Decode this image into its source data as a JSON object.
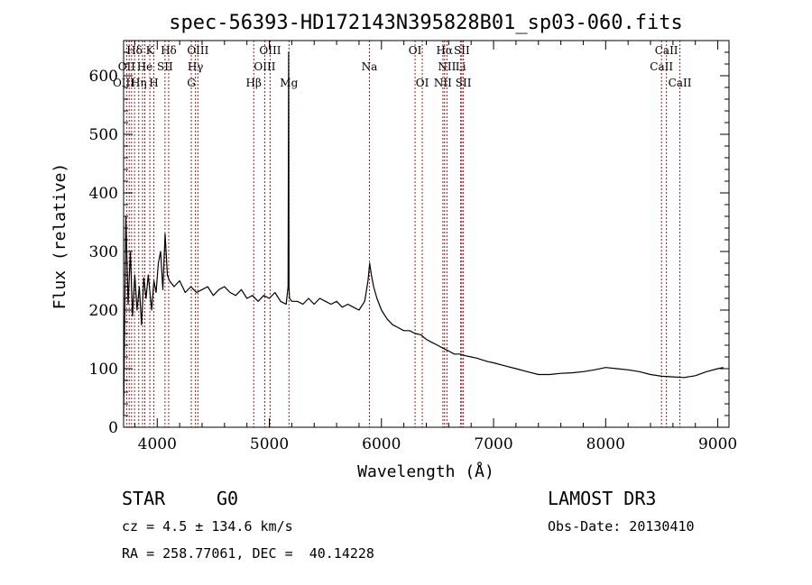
{
  "chart_data": {
    "type": "line",
    "title": "spec-56393-HD172143N395828B01_sp03-060.fits",
    "xlabel": "Wavelength (Å)",
    "ylabel": "Flux (relative)",
    "xlim": [
      3700,
      9100
    ],
    "ylim": [
      0,
      660
    ],
    "x_major_ticks": [
      4000,
      5000,
      6000,
      7000,
      8000,
      9000
    ],
    "x_tick_labels": [
      "4000",
      "5000",
      "6000",
      "7000",
      "8000",
      "9000"
    ],
    "y_major_ticks": [
      0,
      100,
      200,
      300,
      400,
      500,
      600
    ],
    "y_tick_labels": [
      "0",
      "100",
      "200",
      "300",
      "400",
      "500",
      "600"
    ],
    "series": [
      {
        "name": "spectrum",
        "color": "#000000",
        "x": [
          3700,
          3720,
          3740,
          3760,
          3780,
          3800,
          3820,
          3840,
          3860,
          3880,
          3900,
          3920,
          3950,
          3970,
          3990,
          4010,
          4030,
          4050,
          4070,
          4090,
          4110,
          4150,
          4200,
          4250,
          4300,
          4350,
          4400,
          4450,
          4500,
          4550,
          4600,
          4650,
          4700,
          4750,
          4800,
          4850,
          4900,
          4950,
          5000,
          5050,
          5100,
          5150,
          5167,
          5172,
          5175,
          5180,
          5200,
          5250,
          5300,
          5350,
          5400,
          5450,
          5500,
          5550,
          5600,
          5650,
          5700,
          5750,
          5800,
          5850,
          5880,
          5895,
          5910,
          5930,
          5960,
          6000,
          6050,
          6100,
          6150,
          6200,
          6250,
          6300,
          6350,
          6400,
          6450,
          6500,
          6550,
          6600,
          6650,
          6700,
          6750,
          6800,
          6850,
          6900,
          6950,
          7000,
          7100,
          7200,
          7300,
          7400,
          7500,
          7600,
          7700,
          7800,
          7900,
          8000,
          8100,
          8200,
          8300,
          8400,
          8500,
          8600,
          8700,
          8800,
          8900,
          9000,
          9050
        ],
        "y": [
          20,
          360,
          210,
          300,
          190,
          260,
          200,
          240,
          175,
          255,
          220,
          260,
          200,
          250,
          230,
          280,
          300,
          235,
          330,
          260,
          250,
          240,
          250,
          230,
          240,
          230,
          235,
          240,
          225,
          235,
          240,
          230,
          225,
          235,
          220,
          225,
          215,
          225,
          220,
          230,
          215,
          210,
          240,
          640,
          240,
          220,
          215,
          215,
          210,
          220,
          210,
          220,
          215,
          210,
          215,
          205,
          210,
          205,
          200,
          215,
          250,
          280,
          260,
          240,
          220,
          200,
          185,
          175,
          170,
          165,
          165,
          160,
          158,
          150,
          145,
          140,
          135,
          130,
          125,
          125,
          122,
          120,
          118,
          115,
          112,
          110,
          105,
          100,
          95,
          90,
          90,
          92,
          93,
          95,
          98,
          102,
          100,
          98,
          95,
          90,
          87,
          86,
          85,
          88,
          95,
          100,
          102
        ]
      }
    ],
    "line_labels": [
      {
        "label": "Hδ",
        "x": 3797,
        "row": 1
      },
      {
        "label": "OII",
        "x": 3727,
        "row": 2
      },
      {
        "label": "OIII",
        "x": 3700,
        "row": 3
      },
      {
        "label": "He",
        "x": 3889,
        "row": 2
      },
      {
        "label": "Hη",
        "x": 3835,
        "row": 3
      },
      {
        "label": "K",
        "x": 3934,
        "row": 1
      },
      {
        "label": "SII",
        "x": 4069,
        "row": 2
      },
      {
        "label": "H",
        "x": 3969,
        "row": 3
      },
      {
        "label": "Hδ",
        "x": 4102,
        "row": 1
      },
      {
        "label": "OIII",
        "x": 4363,
        "row": 1
      },
      {
        "label": "Hγ",
        "x": 4341,
        "row": 2
      },
      {
        "label": "G",
        "x": 4304,
        "row": 3
      },
      {
        "label": "OIII",
        "x": 5007,
        "row": 1
      },
      {
        "label": "OIII",
        "x": 4959,
        "row": 2
      },
      {
        "label": "Hβ",
        "x": 4861,
        "row": 3
      },
      {
        "label": "Mg",
        "x": 5175,
        "row": 3
      },
      {
        "label": "Na",
        "x": 5893,
        "row": 2
      },
      {
        "label": "OI",
        "x": 6300,
        "row": 1
      },
      {
        "label": "OI",
        "x": 6364,
        "row": 3
      },
      {
        "label": "Hα",
        "x": 6563,
        "row": 1
      },
      {
        "label": "SII",
        "x": 6717,
        "row": 1
      },
      {
        "label": "NII",
        "x": 6584,
        "row": 2
      },
      {
        "label": "Li",
        "x": 6707,
        "row": 2
      },
      {
        "label": "NII",
        "x": 6548,
        "row": 3
      },
      {
        "label": "SII",
        "x": 6731,
        "row": 3
      },
      {
        "label": "CaII",
        "x": 8542,
        "row": 1
      },
      {
        "label": "CaII",
        "x": 8498,
        "row": 2
      },
      {
        "label": "CaII",
        "x": 8662,
        "row": 3
      }
    ],
    "line_marker_wavelengths": [
      3727,
      3750,
      3771,
      3798,
      3835,
      3869,
      3889,
      3934,
      3969,
      4069,
      4102,
      4304,
      4341,
      4363,
      4861,
      4959,
      5007,
      5175,
      5893,
      6300,
      6364,
      6548,
      6563,
      6584,
      6707,
      6717,
      6731,
      8498,
      8542,
      8662
    ],
    "line_marker_color": "#9b1c1c"
  },
  "info": {
    "object_class": "STAR",
    "subclass": "G0",
    "survey": "LAMOST DR3",
    "redshift_line": "cz = 4.5 ± 134.6 km/s",
    "obs_date": "Obs-Date: 20130410",
    "coords": "RA = 258.77061, DEC =  40.14228"
  }
}
